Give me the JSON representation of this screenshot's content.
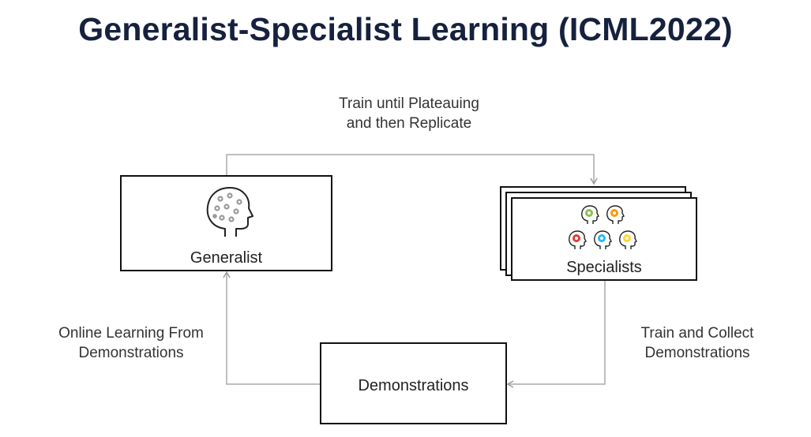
{
  "title": "Generalist-Specialist Learning (ICML2022)",
  "top_edge": {
    "line1": "Train until Plateauing",
    "line2": "and then Replicate"
  },
  "left_edge": {
    "line1": "Online Learning From",
    "line2": "Demonstrations"
  },
  "right_edge": {
    "line1": "Train and Collect",
    "line2": "Demonstrations"
  },
  "nodes": {
    "generalist": {
      "label": "Generalist",
      "icon": "head-with-gears-icon"
    },
    "specialists": {
      "label": "Specialists",
      "icon": "colored-heads-icon",
      "head_colors": [
        "#8bc34a",
        "#ff9800",
        "#e53935",
        "#29b6f6",
        "#fdd835"
      ]
    },
    "demonstrations": {
      "label": "Demonstrations"
    }
  },
  "colors": {
    "title": "#16213e",
    "arrow": "#aaaaaa",
    "border": "#111111"
  }
}
